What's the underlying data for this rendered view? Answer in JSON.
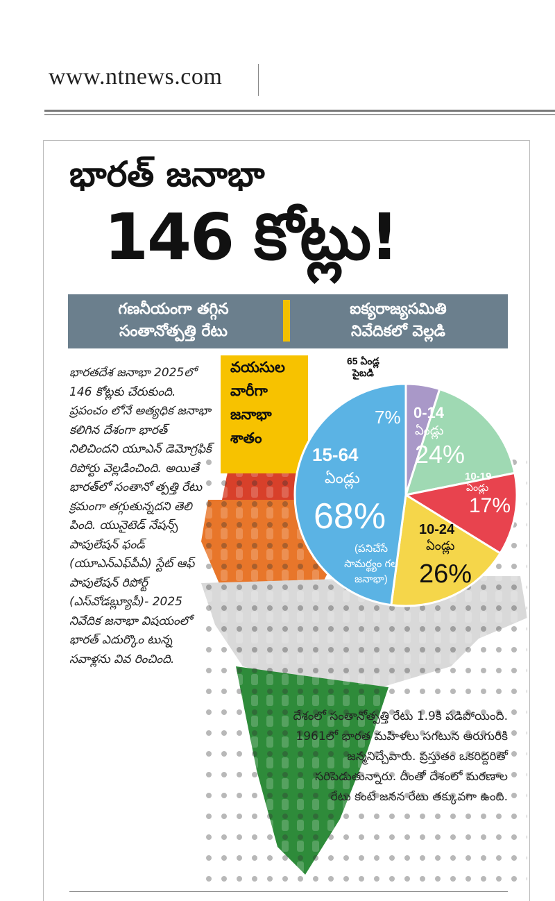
{
  "header": {
    "site": "www.ntnews.com"
  },
  "headline": {
    "line1": "భారత్ జనాభా",
    "line2": "146 కోట్లు!"
  },
  "band": {
    "left": "గణనీయంగా తగ్గిన\nసంతానోత్పత్తి రేటు",
    "right": "ఐక్యరాజ్యసమితి\nనివేదికలో వెల్లడి"
  },
  "body_left": "భారతదేశ జనాభా 2025లో 146 కోట్లకు చేరుకుంది. ప్రపంచం లోనే అత్యధిక జనాభా కలిగిన దేశంగా భారత్ నిలిచిందని యూఎన్ డెమోగ్రఫిక్ రిపోర్టు వెల్లడించింది. అయితే భారత్‌లో సంతానో త్పత్తి రేటు క్రమంగా తగ్గుతున్నదని తెలి పింది. యునైటెడ్ నేషన్స్ పాపులేషన్ ఫండ్ (యూఎన్‌ఎఫ్‌పీఏ) స్టేట్ ఆఫ్ పాపులేషన్ రిపోర్ట్ (ఎస్‌వోడబ్ల్యూపీ)- 2025 నివేదిక జనాభా విషయంలో భారత్ ఎదుర్కొం టున్న సవాళ్లను వివ రించింది.",
  "body_bottom": "దేశంలో సంతానోత్పత్తి రేటు 1.9కి పడిపోయింది. 1961లో భారత మహిళలు సగటున ఆరుగురికి జన్మనిచ్చేవారు. ప్రస్తుతం ఒకరిద్దరితో సరిపెడుతున్నారు. దీంతో దేశంలో మరణాల రేటు కంటే జనన రేటు తక్కువగా ఉంది.",
  "age_box": [
    "వయసుల",
    "వారీగా",
    "జనాభా",
    "శాతం"
  ],
  "chart_data": {
    "type": "pie",
    "title": "వయసుల వారీగా జనాభా శాతం",
    "slices": [
      {
        "label": "65 ఏండ్ల పైబడి",
        "value": 7,
        "display": "7%",
        "color": "#a998c8"
      },
      {
        "label": "0-14 ఏండ్లు",
        "value": 24,
        "display": "24%",
        "color": "#9fd9b3"
      },
      {
        "label": "10-19 ఏండ్లు",
        "value": 17,
        "display": "17%",
        "color": "#e8434e"
      },
      {
        "label": "10-24 ఏండ్లు",
        "value": 26,
        "display": "26%",
        "color": "#f5d64a"
      },
      {
        "label": "15-64 ఏండ్లు",
        "value": 68,
        "display": "68%",
        "note": "(పనిచేసే సామర్థ్యం గల జనాభా)",
        "color": "#5bb3e4"
      }
    ]
  },
  "pie_text": {
    "old_label_1": "65 ఏండ్ల",
    "old_label_2": "పైబడి",
    "old_pct": "7%",
    "c014_1": "0-14",
    "c014_2": "ఏండ్లు",
    "c014_pct": "24%",
    "c1019_1": "10-19",
    "c1019_2": "ఏండ్లు",
    "c1019_pct": "17%",
    "c1024_1": "10-24",
    "c1024_2": "ఏండ్లు",
    "c1024_pct": "26%",
    "c1564_1": "15-64",
    "c1564_2": "ఏండ్లు",
    "c1564_pct": "68%",
    "c1564_note": "(పనిచేసే\nసామర్థ్యం గల\nజనాభా)"
  }
}
